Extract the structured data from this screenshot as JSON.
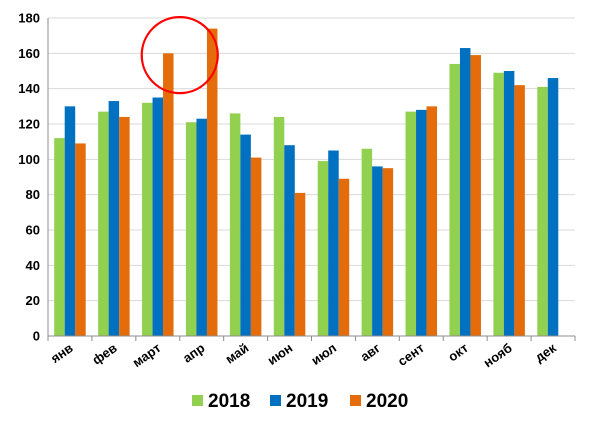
{
  "chart_data": {
    "type": "bar",
    "categories": [
      "янв",
      "фев",
      "март",
      "апр",
      "май",
      "июн",
      "июл",
      "авг",
      "сент",
      "окт",
      "нояб",
      "дек"
    ],
    "series": [
      {
        "name": "2018",
        "color": "#92d050",
        "values": [
          112,
          127,
          132,
          121,
          126,
          124,
          99,
          106,
          127,
          154,
          149,
          141
        ]
      },
      {
        "name": "2019",
        "color": "#0070c0",
        "values": [
          130,
          133,
          135,
          123,
          114,
          108,
          105,
          96,
          128,
          163,
          150,
          146
        ]
      },
      {
        "name": "2020",
        "color": "#e46c0a",
        "values": [
          109,
          124,
          160,
          174,
          101,
          81,
          89,
          95,
          130,
          159,
          142,
          null
        ]
      }
    ],
    "yticks": [
      0,
      20,
      40,
      60,
      80,
      100,
      120,
      140,
      160,
      180
    ],
    "ylim": [
      0,
      180
    ],
    "grid": true,
    "legend": "bottom",
    "annotation": {
      "shape": "circle",
      "color": "#ff0000",
      "category": "апр",
      "y_center": 159
    }
  }
}
